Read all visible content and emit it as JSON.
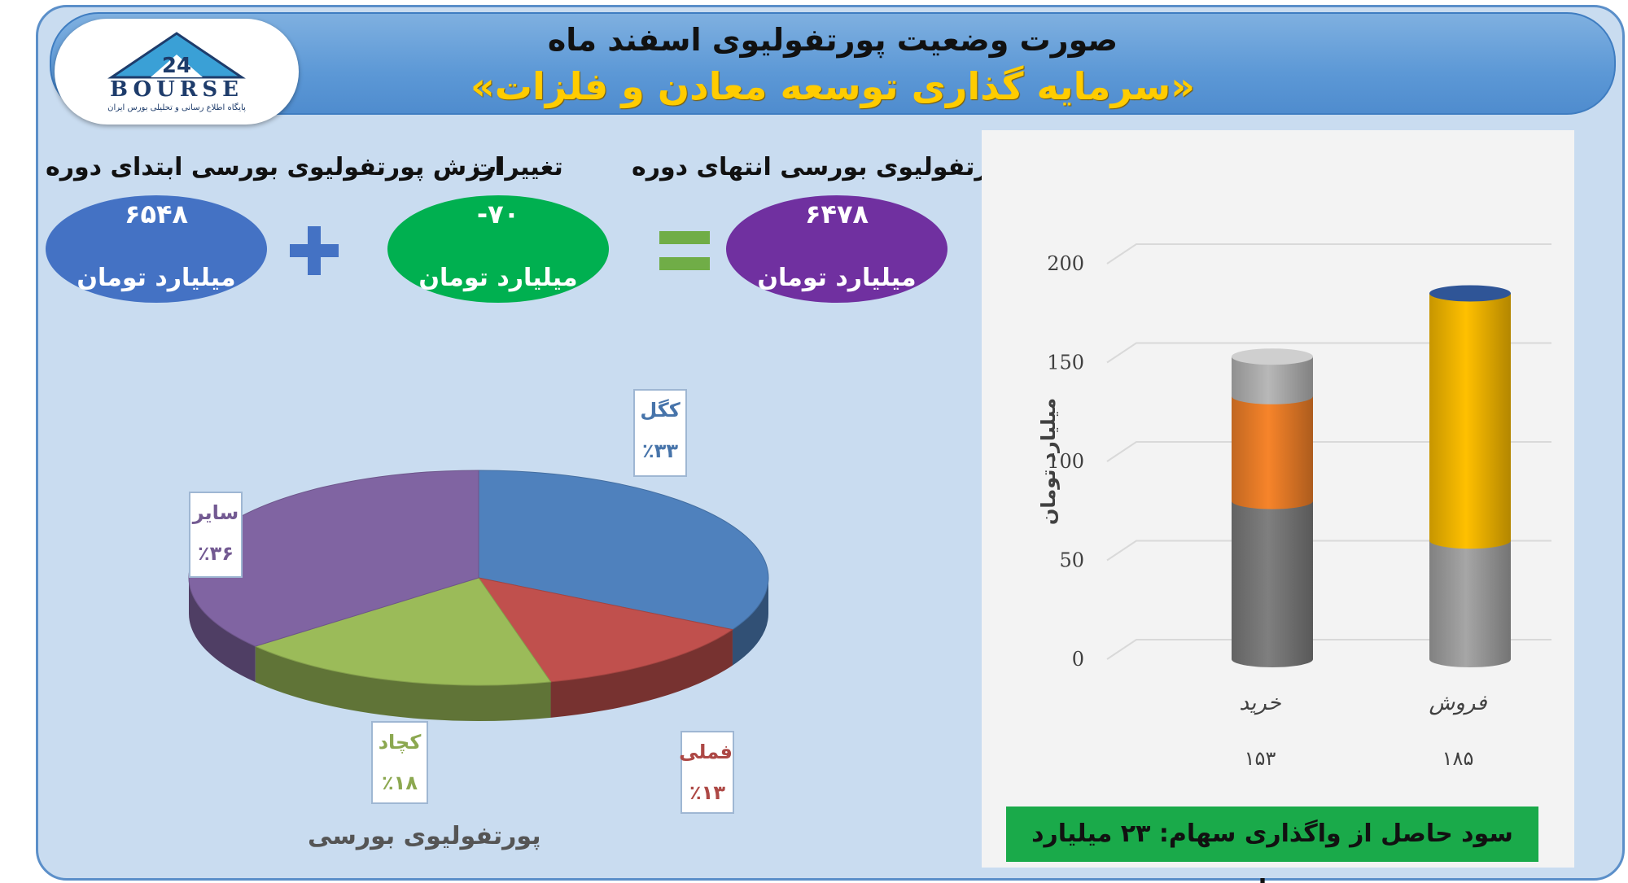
{
  "header": {
    "title": "صورت وضعیت پورتفولیوی اسفند ماه",
    "subtitle": "«سرمایه گذاری توسعه معادن و فلزات»"
  },
  "logo": {
    "text": "BOURSE",
    "caption": "پایگاه اطلاع رسانی و تحلیلی بورس ایران"
  },
  "summary": {
    "start": {
      "label": "ارزش پورتفولیوی بورسی ابتدای دوره",
      "value": "۶۵۴۸",
      "unit": "میلیارد تومان",
      "color": "#4472c4"
    },
    "change": {
      "label": "تغییرات",
      "value": "-۷۰",
      "unit": "میلیارد تومان",
      "color": "#00b050"
    },
    "end": {
      "label": "ارزش پورتفولیوی بورسی انتهای دوره",
      "value": "۶۴۷۸",
      "unit": "میلیارد تومان",
      "color": "#7030a0"
    },
    "plus_color": "#4472c4",
    "equals_color": "#70ad47"
  },
  "chart_data": [
    {
      "type": "pie",
      "title": "پورتفولیوی بورسی",
      "slices": [
        {
          "name": "کگل",
          "value": 33,
          "label": "٪۳۳",
          "color": "#4f81bd"
        },
        {
          "name": "فملی",
          "value": 13,
          "label": "٪۱۳",
          "color": "#c0504d"
        },
        {
          "name": "کچاد",
          "value": 18,
          "label": "٪۱۸",
          "color": "#9bbb59"
        },
        {
          "name": "سایر",
          "value": 36,
          "label": "٪۳۶",
          "color": "#8064a2"
        }
      ]
    },
    {
      "type": "bar",
      "stacked": true,
      "ylabel": "میلیارد تومان",
      "ylim": [
        0,
        200
      ],
      "yticks": [
        0,
        50,
        100,
        150,
        200
      ],
      "categories": [
        "خرید",
        "فروش"
      ],
      "totals": [
        "۱۵۳",
        "۱۸۵"
      ],
      "series": [
        {
          "values": [
            80,
            60
          ],
          "colors": [
            "#7f7f7f",
            "#a6a6a6"
          ]
        },
        {
          "values": [
            53,
            125
          ],
          "colors": [
            "#f7842a",
            "#ffc000"
          ]
        },
        {
          "values": [
            20,
            0
          ],
          "colors": [
            "#b8b8b8",
            "#b8b8b8"
          ]
        }
      ],
      "cap_colors": [
        "#cfcfcf",
        "#2f5597"
      ],
      "footer": "سود حاصل از واگذاری سهام: ۲۳ میلیارد تومان"
    }
  ]
}
